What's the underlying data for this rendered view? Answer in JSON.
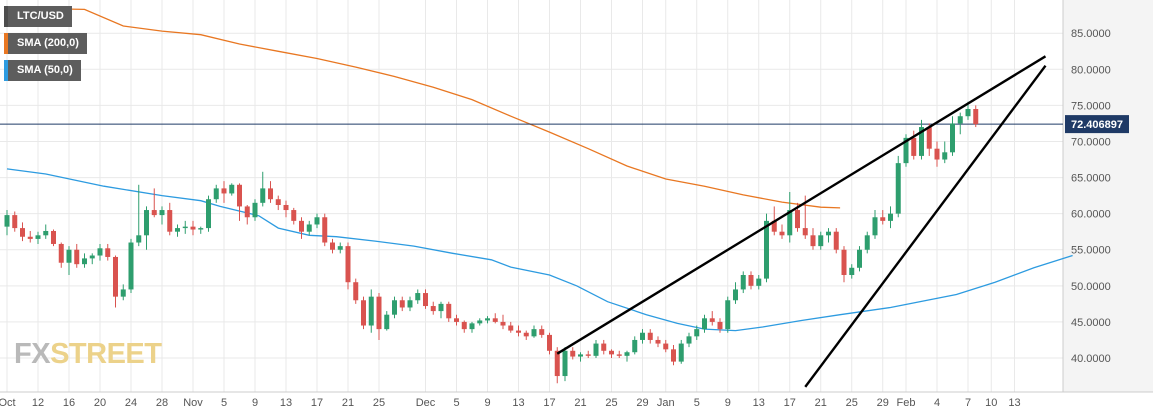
{
  "legend": [
    {
      "label": "LTC/USD",
      "color": "#4d4d4d"
    },
    {
      "label": "SMA (200,0)",
      "color": "#e87722"
    },
    {
      "label": "SMA (50,0)",
      "color": "#2d9be0"
    }
  ],
  "watermark": {
    "part1": "FX",
    "part2": "STREET"
  },
  "colors": {
    "up": "#2e9e6e",
    "down": "#d9534f",
    "sma200": "#e87722",
    "sma50": "#2d9be0",
    "price_line": "#1f3a66",
    "trendline": "#000000",
    "grid": "#e9e9e9",
    "axis_panel": "#f4f4f4"
  },
  "chart_data": {
    "type": "candlestick",
    "symbol": "LTC/USD",
    "current_price": 72.406897,
    "current_price_label": "72.406897",
    "ylim": [
      36,
      88
    ],
    "yticks": [
      40,
      45,
      50,
      55,
      60,
      65,
      70,
      75,
      80,
      85
    ],
    "ytick_labels": [
      "40.0000",
      "45.0000",
      "50.0000",
      "55.0000",
      "60.0000",
      "65.0000",
      "70.0000",
      "75.0000",
      "80.0000",
      "85.0000"
    ],
    "x_labels": [
      {
        "i": 0,
        "label": "Oct"
      },
      {
        "i": 4,
        "label": "12"
      },
      {
        "i": 8,
        "label": "16"
      },
      {
        "i": 12,
        "label": "20"
      },
      {
        "i": 16,
        "label": "24"
      },
      {
        "i": 20,
        "label": "28"
      },
      {
        "i": 24,
        "label": "Nov"
      },
      {
        "i": 28,
        "label": "5"
      },
      {
        "i": 32,
        "label": "9"
      },
      {
        "i": 36,
        "label": "13"
      },
      {
        "i": 40,
        "label": "17"
      },
      {
        "i": 44,
        "label": "21"
      },
      {
        "i": 48,
        "label": "25"
      },
      {
        "i": 54,
        "label": "Dec"
      },
      {
        "i": 58,
        "label": "5"
      },
      {
        "i": 62,
        "label": "9"
      },
      {
        "i": 66,
        "label": "13"
      },
      {
        "i": 70,
        "label": "17"
      },
      {
        "i": 74,
        "label": "21"
      },
      {
        "i": 78,
        "label": "25"
      },
      {
        "i": 82,
        "label": "29"
      },
      {
        "i": 85,
        "label": "Jan"
      },
      {
        "i": 89,
        "label": "5"
      },
      {
        "i": 93,
        "label": "9"
      },
      {
        "i": 97,
        "label": "13"
      },
      {
        "i": 101,
        "label": "17"
      },
      {
        "i": 105,
        "label": "21"
      },
      {
        "i": 109,
        "label": "25"
      },
      {
        "i": 113,
        "label": "29"
      },
      {
        "i": 116,
        "label": "Feb"
      },
      {
        "i": 120,
        "label": "4"
      },
      {
        "i": 124,
        "label": "7"
      },
      {
        "i": 127,
        "label": "10"
      },
      {
        "i": 130,
        "label": "13"
      }
    ],
    "candles": [
      {
        "o": 58.2,
        "h": 60.5,
        "l": 57.0,
        "c": 59.8
      },
      {
        "o": 59.8,
        "h": 60.3,
        "l": 57.5,
        "c": 58.0
      },
      {
        "o": 58.0,
        "h": 58.8,
        "l": 56.2,
        "c": 56.8
      },
      {
        "o": 56.8,
        "h": 57.6,
        "l": 56.0,
        "c": 56.5
      },
      {
        "o": 56.5,
        "h": 57.5,
        "l": 55.8,
        "c": 57.0
      },
      {
        "o": 57.0,
        "h": 58.5,
        "l": 56.5,
        "c": 57.6
      },
      {
        "o": 57.6,
        "h": 57.8,
        "l": 55.5,
        "c": 55.8
      },
      {
        "o": 55.8,
        "h": 56.0,
        "l": 52.5,
        "c": 53.2
      },
      {
        "o": 53.2,
        "h": 55.5,
        "l": 51.5,
        "c": 55.0
      },
      {
        "o": 55.0,
        "h": 55.8,
        "l": 52.5,
        "c": 53.0
      },
      {
        "o": 53.0,
        "h": 54.5,
        "l": 52.5,
        "c": 53.8
      },
      {
        "o": 53.8,
        "h": 54.5,
        "l": 53.0,
        "c": 54.2
      },
      {
        "o": 54.2,
        "h": 55.8,
        "l": 53.5,
        "c": 55.2
      },
      {
        "o": 55.2,
        "h": 55.8,
        "l": 53.5,
        "c": 54.0
      },
      {
        "o": 54.0,
        "h": 54.2,
        "l": 47.0,
        "c": 48.5
      },
      {
        "o": 48.5,
        "h": 50.2,
        "l": 48.0,
        "c": 49.5
      },
      {
        "o": 49.5,
        "h": 56.5,
        "l": 49.0,
        "c": 56.0
      },
      {
        "o": 56.0,
        "h": 64.0,
        "l": 55.5,
        "c": 57.0
      },
      {
        "o": 57.0,
        "h": 61.0,
        "l": 55.0,
        "c": 60.5
      },
      {
        "o": 60.5,
        "h": 63.5,
        "l": 59.5,
        "c": 59.8
      },
      {
        "o": 59.8,
        "h": 61.0,
        "l": 58.5,
        "c": 60.5
      },
      {
        "o": 60.5,
        "h": 61.5,
        "l": 57.0,
        "c": 57.5
      },
      {
        "o": 57.5,
        "h": 58.5,
        "l": 56.8,
        "c": 58.0
      },
      {
        "o": 58.0,
        "h": 59.0,
        "l": 57.2,
        "c": 58.2
      },
      {
        "o": 58.2,
        "h": 59.0,
        "l": 57.0,
        "c": 57.8
      },
      {
        "o": 57.8,
        "h": 58.2,
        "l": 57.2,
        "c": 58.0
      },
      {
        "o": 58.0,
        "h": 62.5,
        "l": 57.5,
        "c": 62.0
      },
      {
        "o": 62.0,
        "h": 64.0,
        "l": 61.5,
        "c": 63.5
      },
      {
        "o": 63.5,
        "h": 64.5,
        "l": 61.5,
        "c": 62.8
      },
      {
        "o": 62.8,
        "h": 64.2,
        "l": 62.5,
        "c": 64.0
      },
      {
        "o": 64.0,
        "h": 64.2,
        "l": 59.0,
        "c": 61.0
      },
      {
        "o": 61.0,
        "h": 61.2,
        "l": 58.5,
        "c": 59.5
      },
      {
        "o": 59.5,
        "h": 62.0,
        "l": 59.0,
        "c": 61.5
      },
      {
        "o": 61.5,
        "h": 65.8,
        "l": 61.0,
        "c": 63.5
      },
      {
        "o": 63.5,
        "h": 64.5,
        "l": 61.5,
        "c": 62.0
      },
      {
        "o": 62.0,
        "h": 62.5,
        "l": 60.5,
        "c": 61.2
      },
      {
        "o": 61.2,
        "h": 61.8,
        "l": 59.5,
        "c": 60.5
      },
      {
        "o": 60.5,
        "h": 60.8,
        "l": 58.5,
        "c": 59.0
      },
      {
        "o": 59.0,
        "h": 59.5,
        "l": 56.5,
        "c": 57.5
      },
      {
        "o": 57.5,
        "h": 59.0,
        "l": 57.0,
        "c": 58.5
      },
      {
        "o": 58.5,
        "h": 60.0,
        "l": 58.0,
        "c": 59.5
      },
      {
        "o": 59.5,
        "h": 60.0,
        "l": 55.5,
        "c": 56.0
      },
      {
        "o": 56.0,
        "h": 56.5,
        "l": 54.5,
        "c": 55.0
      },
      {
        "o": 55.0,
        "h": 56.0,
        "l": 54.5,
        "c": 55.5
      },
      {
        "o": 55.5,
        "h": 56.0,
        "l": 49.5,
        "c": 50.5
      },
      {
        "o": 50.5,
        "h": 51.0,
        "l": 47.5,
        "c": 48.0
      },
      {
        "o": 48.0,
        "h": 48.5,
        "l": 44.0,
        "c": 44.5
      },
      {
        "o": 44.5,
        "h": 49.5,
        "l": 43.5,
        "c": 48.5
      },
      {
        "o": 48.5,
        "h": 49.0,
        "l": 42.5,
        "c": 44.0
      },
      {
        "o": 44.0,
        "h": 46.5,
        "l": 43.8,
        "c": 46.0
      },
      {
        "o": 46.0,
        "h": 48.5,
        "l": 45.5,
        "c": 48.0
      },
      {
        "o": 48.0,
        "h": 48.5,
        "l": 46.5,
        "c": 47.0
      },
      {
        "o": 47.0,
        "h": 48.5,
        "l": 46.5,
        "c": 48.0
      },
      {
        "o": 48.0,
        "h": 49.5,
        "l": 47.5,
        "c": 49.0
      },
      {
        "o": 49.0,
        "h": 49.5,
        "l": 46.8,
        "c": 47.2
      },
      {
        "o": 47.2,
        "h": 47.8,
        "l": 46.0,
        "c": 46.5
      },
      {
        "o": 46.5,
        "h": 47.8,
        "l": 45.5,
        "c": 47.5
      },
      {
        "o": 47.5,
        "h": 47.8,
        "l": 45.0,
        "c": 45.5
      },
      {
        "o": 45.5,
        "h": 46.0,
        "l": 44.5,
        "c": 45.0
      },
      {
        "o": 45.0,
        "h": 45.2,
        "l": 43.5,
        "c": 44.0
      },
      {
        "o": 44.0,
        "h": 45.0,
        "l": 43.5,
        "c": 44.8
      },
      {
        "o": 44.8,
        "h": 45.5,
        "l": 44.5,
        "c": 45.2
      },
      {
        "o": 45.2,
        "h": 45.8,
        "l": 44.8,
        "c": 45.5
      },
      {
        "o": 45.5,
        "h": 46.2,
        "l": 44.8,
        "c": 45.0
      },
      {
        "o": 45.0,
        "h": 46.0,
        "l": 44.0,
        "c": 44.5
      },
      {
        "o": 44.5,
        "h": 45.0,
        "l": 43.5,
        "c": 43.8
      },
      {
        "o": 43.8,
        "h": 44.5,
        "l": 43.0,
        "c": 43.5
      },
      {
        "o": 43.5,
        "h": 43.8,
        "l": 42.5,
        "c": 43.0
      },
      {
        "o": 43.0,
        "h": 44.5,
        "l": 42.8,
        "c": 44.0
      },
      {
        "o": 44.0,
        "h": 44.5,
        "l": 42.8,
        "c": 43.2
      },
      {
        "o": 43.2,
        "h": 43.5,
        "l": 40.5,
        "c": 41.0
      },
      {
        "o": 41.0,
        "h": 41.5,
        "l": 36.5,
        "c": 37.5
      },
      {
        "o": 37.5,
        "h": 41.5,
        "l": 36.8,
        "c": 41.0
      },
      {
        "o": 41.0,
        "h": 41.5,
        "l": 39.8,
        "c": 40.2
      },
      {
        "o": 40.2,
        "h": 40.8,
        "l": 39.5,
        "c": 40.5
      },
      {
        "o": 40.5,
        "h": 41.0,
        "l": 40.0,
        "c": 40.3
      },
      {
        "o": 40.3,
        "h": 42.5,
        "l": 40.0,
        "c": 42.0
      },
      {
        "o": 42.0,
        "h": 42.5,
        "l": 40.5,
        "c": 41.0
      },
      {
        "o": 41.0,
        "h": 41.2,
        "l": 40.0,
        "c": 40.5
      },
      {
        "o": 40.5,
        "h": 41.0,
        "l": 40.0,
        "c": 40.3
      },
      {
        "o": 40.3,
        "h": 41.0,
        "l": 39.5,
        "c": 40.8
      },
      {
        "o": 40.8,
        "h": 43.0,
        "l": 40.5,
        "c": 42.5
      },
      {
        "o": 42.5,
        "h": 44.0,
        "l": 42.0,
        "c": 43.5
      },
      {
        "o": 43.5,
        "h": 44.0,
        "l": 42.0,
        "c": 42.5
      },
      {
        "o": 42.5,
        "h": 43.0,
        "l": 41.5,
        "c": 42.0
      },
      {
        "o": 42.0,
        "h": 42.5,
        "l": 40.8,
        "c": 41.2
      },
      {
        "o": 41.2,
        "h": 41.8,
        "l": 39.0,
        "c": 39.5
      },
      {
        "o": 39.5,
        "h": 42.5,
        "l": 39.2,
        "c": 42.0
      },
      {
        "o": 42.0,
        "h": 43.5,
        "l": 41.5,
        "c": 43.0
      },
      {
        "o": 43.0,
        "h": 44.5,
        "l": 42.5,
        "c": 44.0
      },
      {
        "o": 44.0,
        "h": 46.0,
        "l": 43.5,
        "c": 45.5
      },
      {
        "o": 45.5,
        "h": 46.5,
        "l": 44.5,
        "c": 45.0
      },
      {
        "o": 45.0,
        "h": 45.5,
        "l": 43.5,
        "c": 44.0
      },
      {
        "o": 44.0,
        "h": 48.5,
        "l": 43.5,
        "c": 48.0
      },
      {
        "o": 48.0,
        "h": 50.5,
        "l": 47.5,
        "c": 49.5
      },
      {
        "o": 49.5,
        "h": 52.0,
        "l": 49.0,
        "c": 51.5
      },
      {
        "o": 51.5,
        "h": 52.0,
        "l": 49.5,
        "c": 50.0
      },
      {
        "o": 50.0,
        "h": 51.5,
        "l": 49.5,
        "c": 51.0
      },
      {
        "o": 51.0,
        "h": 60.0,
        "l": 50.5,
        "c": 59.0
      },
      {
        "o": 59.0,
        "h": 61.0,
        "l": 57.0,
        "c": 57.5
      },
      {
        "o": 57.5,
        "h": 58.5,
        "l": 56.5,
        "c": 57.0
      },
      {
        "o": 57.0,
        "h": 63.0,
        "l": 56.0,
        "c": 60.5
      },
      {
        "o": 60.5,
        "h": 61.5,
        "l": 57.5,
        "c": 58.0
      },
      {
        "o": 58.0,
        "h": 62.5,
        "l": 56.5,
        "c": 57.0
      },
      {
        "o": 57.0,
        "h": 58.0,
        "l": 55.0,
        "c": 55.5
      },
      {
        "o": 55.5,
        "h": 57.5,
        "l": 55.0,
        "c": 57.0
      },
      {
        "o": 57.0,
        "h": 58.0,
        "l": 56.0,
        "c": 57.5
      },
      {
        "o": 57.5,
        "h": 58.0,
        "l": 54.5,
        "c": 55.0
      },
      {
        "o": 55.0,
        "h": 55.5,
        "l": 50.5,
        "c": 51.5
      },
      {
        "o": 51.5,
        "h": 53.0,
        "l": 51.0,
        "c": 52.5
      },
      {
        "o": 52.5,
        "h": 55.5,
        "l": 52.0,
        "c": 55.0
      },
      {
        "o": 55.0,
        "h": 57.5,
        "l": 54.5,
        "c": 57.0
      },
      {
        "o": 57.0,
        "h": 60.5,
        "l": 56.5,
        "c": 59.5
      },
      {
        "o": 59.5,
        "h": 60.5,
        "l": 58.5,
        "c": 59.0
      },
      {
        "o": 59.0,
        "h": 61.0,
        "l": 58.0,
        "c": 60.0
      },
      {
        "o": 60.0,
        "h": 68.0,
        "l": 59.5,
        "c": 67.0
      },
      {
        "o": 67.0,
        "h": 71.0,
        "l": 66.5,
        "c": 70.5
      },
      {
        "o": 70.5,
        "h": 71.5,
        "l": 67.5,
        "c": 68.0
      },
      {
        "o": 68.0,
        "h": 73.0,
        "l": 67.5,
        "c": 72.0
      },
      {
        "o": 72.0,
        "h": 72.5,
        "l": 68.0,
        "c": 69.0
      },
      {
        "o": 69.0,
        "h": 70.0,
        "l": 66.5,
        "c": 67.5
      },
      {
        "o": 67.5,
        "h": 70.0,
        "l": 67.0,
        "c": 68.5
      },
      {
        "o": 68.5,
        "h": 73.5,
        "l": 68.0,
        "c": 72.5
      },
      {
        "o": 72.5,
        "h": 74.0,
        "l": 71.0,
        "c": 73.5
      },
      {
        "o": 73.5,
        "h": 75.5,
        "l": 73.0,
        "c": 74.5
      },
      {
        "o": 74.5,
        "h": 75.0,
        "l": 72.0,
        "c": 72.4
      }
    ],
    "sma200": [
      [
        0,
        88.5
      ],
      [
        20,
        88.3
      ],
      [
        30,
        86.0
      ],
      [
        40,
        85.3
      ],
      [
        50,
        84.8
      ],
      [
        60,
        83.5
      ],
      [
        70,
        82.5
      ],
      [
        80,
        81.5
      ],
      [
        90,
        80.3
      ],
      [
        100,
        79.0
      ],
      [
        110,
        77.5
      ],
      [
        120,
        75.8
      ],
      [
        130,
        73.5
      ],
      [
        140,
        71.3
      ],
      [
        150,
        69.0
      ],
      [
        160,
        66.6
      ],
      [
        170,
        64.8
      ],
      [
        180,
        63.8
      ],
      [
        190,
        62.6
      ],
      [
        200,
        61.6
      ],
      [
        210,
        60.9
      ],
      [
        215,
        60.8
      ]
    ],
    "sma50": [
      [
        0,
        66.2
      ],
      [
        10,
        65.5
      ],
      [
        25,
        63.8
      ],
      [
        40,
        62.5
      ],
      [
        50,
        61.8
      ],
      [
        55,
        61.0
      ],
      [
        65,
        59.7
      ],
      [
        70,
        58.0
      ],
      [
        78,
        57.0
      ],
      [
        85,
        56.8
      ],
      [
        95,
        56.2
      ],
      [
        105,
        55.5
      ],
      [
        115,
        54.5
      ],
      [
        125,
        53.6
      ],
      [
        130,
        52.6
      ],
      [
        140,
        51.5
      ],
      [
        147,
        50.0
      ],
      [
        155,
        47.8
      ],
      [
        165,
        46.0
      ],
      [
        173,
        44.8
      ],
      [
        180,
        44.0
      ],
      [
        188,
        43.8
      ],
      [
        195,
        44.3
      ],
      [
        205,
        45.2
      ],
      [
        215,
        46.0
      ],
      [
        228,
        47.0
      ],
      [
        245,
        48.8
      ],
      [
        255,
        50.5
      ],
      [
        265,
        52.5
      ],
      [
        275,
        54.2
      ]
    ],
    "trendlines": [
      {
        "from": [
          71,
          40.6
        ],
        "to": [
          134,
          81.8
        ]
      },
      {
        "from": [
          103,
          36.0
        ],
        "to": [
          134,
          80.5
        ]
      }
    ]
  }
}
